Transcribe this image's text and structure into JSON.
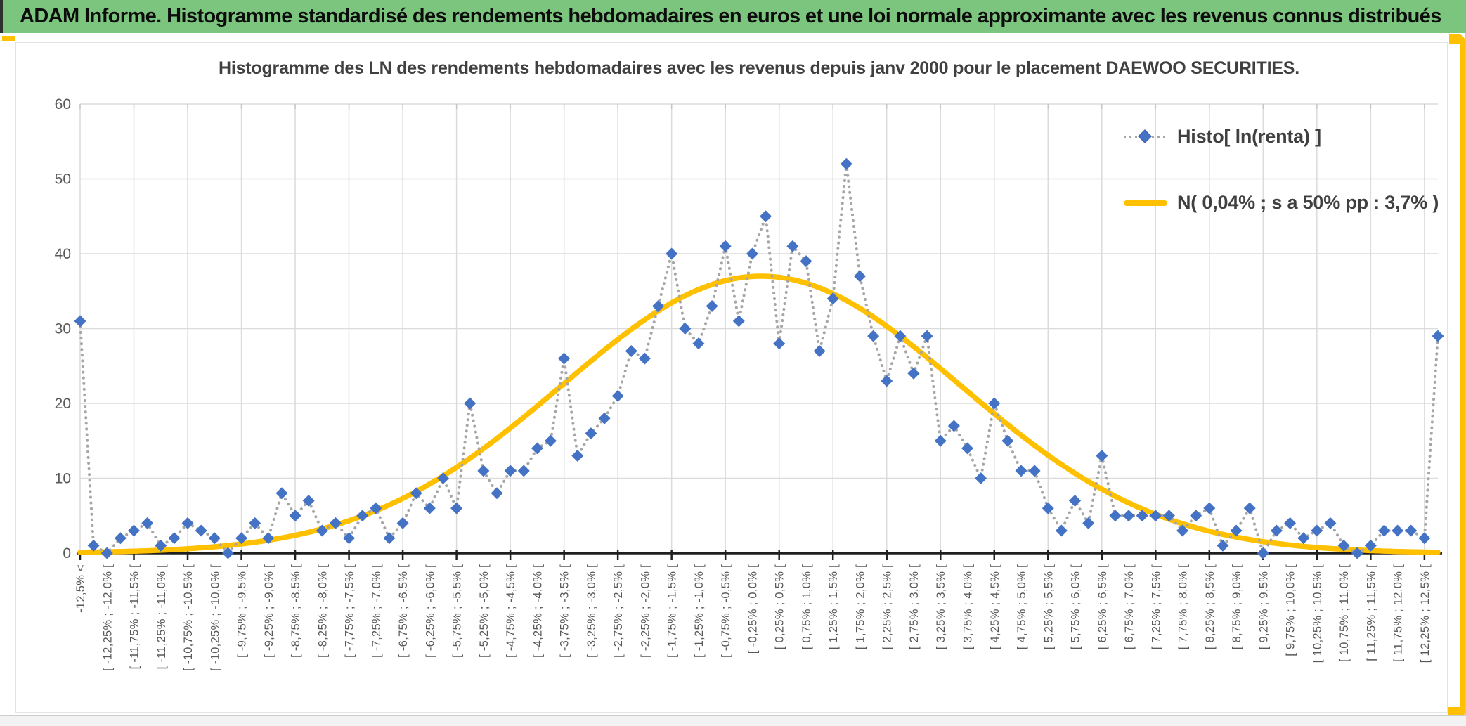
{
  "header": {
    "title": "ADAM Informe. Histogramme standardisé des rendements hebdomadaires en euros et une loi normale approximante avec les revenus connus distribués"
  },
  "chart": {
    "title": "Histogramme des LN des rendements hebdomadaires avec les revenus depuis janv 2000 pour le placement DAEWOO SECURITIES.",
    "legend": [
      {
        "label": "Histo[ ln(renta) ]",
        "marker": "blue-diamond-dotted-line"
      },
      {
        "label": "N( 0,04% ; s a 50% pp : 3,7% )",
        "marker": "orange-solid-line"
      }
    ]
  },
  "chart_data": {
    "type": "line",
    "title": "Histogramme des LN des rendements hebdomadaires avec les revenus depuis janv 2000 pour le placement DAEWOO SECURITIES.",
    "ylabel": "",
    "xlabel": "",
    "ylim": [
      0,
      60
    ],
    "y_ticks": [
      0,
      10,
      20,
      30,
      40,
      50,
      60
    ],
    "grid": true,
    "legend_position": "upper-right",
    "n_categories": 102,
    "x_label_interval": 2,
    "x_tick_interval": 4,
    "categories_labeled": [
      "-12,5% <",
      "[ -12,25% ; -12,0% [",
      "[ -11,75% ; -11,5% [",
      "[ -11,25% ; -11,0% [",
      "[ -10,75% ; -10,5% [",
      "[ -10,25% ; -10,0% [",
      "[ -9,75% ; -9,5% [",
      "[ -9,25% ; -9,0% [",
      "[ -8,75% ; -8,5% [",
      "[ -8,25% ; -8,0% [",
      "[ -7,75% ; -7,5% [",
      "[ -7,25% ; -7,0% [",
      "[ -6,75% ; -6,5% [",
      "[ -6,25% ; -6,0% [",
      "[ -5,75% ; -5,5% [",
      "[ -5,25% ; -5,0% [",
      "[ -4,75% ; -4,5% [",
      "[ -4,25% ; -4,0% [",
      "[ -3,75% ; -3,5% [",
      "[ -3,25% ; -3,0% [",
      "[ -2,75% ; -2,5% [",
      "[ -2,25% ; -2,0% [",
      "[ -1,75% ; -1,5% [",
      "[ -1,25% ; -1,0% [",
      "[ -0,75% ; -0,5% [",
      "[ -0,25% ; 0,0% [",
      "[ 0,25% ; 0,5% [",
      "[ 0,75% ; 1,0% [",
      "[ 1,25% ; 1,5% [",
      "[ 1,75% ; 2,0% [",
      "[ 2,25% ; 2,5% [",
      "[ 2,75% ; 3,0% [",
      "[ 3,25% ; 3,5% [",
      "[ 3,75% ; 4,0% [",
      "[ 4,25% ; 4,5% [",
      "[ 4,75% ; 5,0% [",
      "[ 5,25% ; 5,5% [",
      "[ 5,75% ; 6,0% [",
      "[ 6,25% ; 6,5% [",
      "[ 6,75% ; 7,0% [",
      "[ 7,25% ; 7,5% [",
      "[ 7,75% ; 8,0% [",
      "[ 8,25% ; 8,5% [",
      "[ 8,75% ; 9,0% [",
      "[ 9,25% ; 9,5% [",
      "[ 9,75% ; 10,0% [",
      "[ 10,25% ; 10,5% [",
      "[ 10,75% ; 11,0% [",
      "[ 11,25% ; 11,5% [",
      "[ 11,75% ; 12,0% [",
      "[ 12,25% ; 12,5% ["
    ],
    "series": [
      {
        "name": "Histo[ ln(renta) ]",
        "style": "dotted-gray-line-blue-diamond-markers",
        "values": [
          31,
          1,
          0,
          2,
          3,
          4,
          1,
          2,
          4,
          3,
          2,
          0,
          2,
          4,
          2,
          8,
          5,
          7,
          3,
          4,
          2,
          5,
          6,
          2,
          4,
          8,
          6,
          10,
          6,
          20,
          11,
          8,
          11,
          11,
          14,
          15,
          26,
          13,
          16,
          18,
          21,
          27,
          26,
          33,
          40,
          30,
          28,
          33,
          41,
          31,
          40,
          45,
          28,
          41,
          39,
          27,
          34,
          52,
          37,
          29,
          23,
          29,
          24,
          29,
          15,
          17,
          14,
          10,
          20,
          15,
          11,
          11,
          6,
          3,
          7,
          4,
          13,
          5,
          5,
          5,
          5,
          5,
          3,
          5,
          6,
          1,
          3,
          6,
          0,
          3,
          4,
          2,
          3,
          4,
          1,
          0,
          1,
          3,
          3,
          3,
          2,
          29
        ]
      },
      {
        "name": "N( 0,04% ; s a 50% pp : 3,7% )",
        "style": "solid-orange-curve",
        "normal": {
          "mean_pct": 0.04,
          "sd_pct": 3.7,
          "peak": 37,
          "bin_width_pct": 0.25,
          "first_bin_start_pct": -12.5
        }
      }
    ],
    "colors": {
      "header_green": "#7cc57e",
      "accent_orange": "#ffc000",
      "marker_blue": "#4472c4",
      "dotted_line_gray": "#a6a6a6",
      "gridline": "#dbdbdb",
      "axis_line": "#1f1f1f",
      "tick_label": "#595959",
      "title_gray": "#404040"
    }
  }
}
